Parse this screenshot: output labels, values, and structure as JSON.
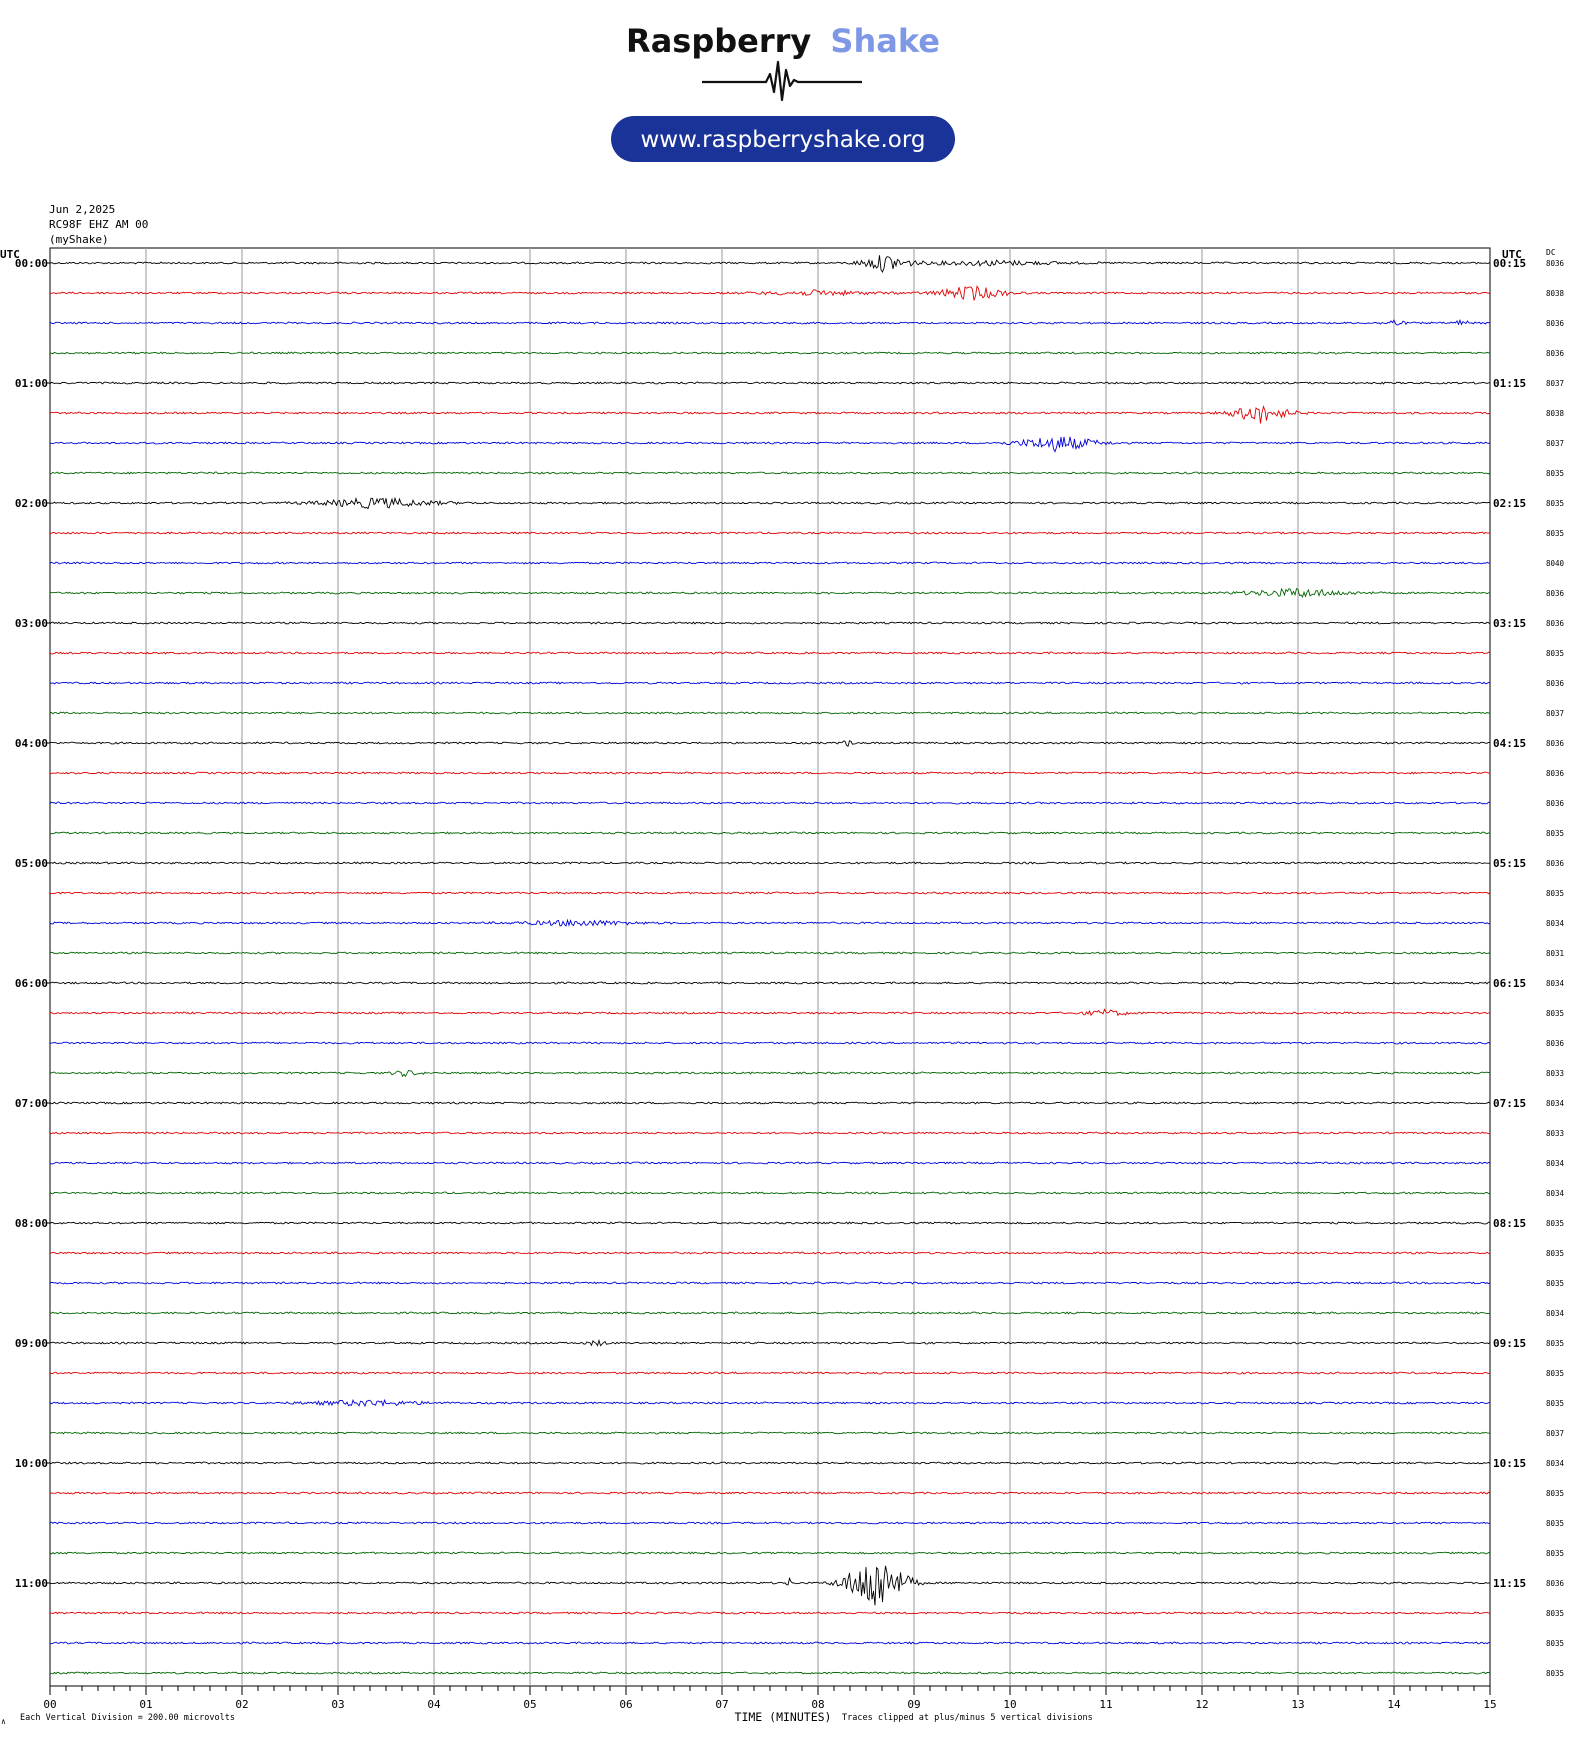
{
  "brand": {
    "name_dark": "Raspberry",
    "name_accent": "Shake",
    "url": "www.raspberryshake.org",
    "colors": {
      "dark": "#111111",
      "accent": "#7f98e6",
      "url_bg": "#1a3399",
      "url_text": "#ffffff"
    }
  },
  "header": {
    "date": "Jun 2,2025",
    "station": "RC98F EHZ AM 00",
    "network": "(myShake)"
  },
  "axes": {
    "left_label": "UTC",
    "right_label": "UTC",
    "dc_label": "DC",
    "x_title": "TIME (MINUTES)",
    "x_ticks": [
      "00",
      "01",
      "02",
      "03",
      "04",
      "05",
      "06",
      "07",
      "08",
      "09",
      "10",
      "11",
      "12",
      "13",
      "14",
      "15"
    ],
    "x_range": [
      0,
      15
    ],
    "footer_left_mark": "∧",
    "footer_left": "Each Vertical Division =  200.00 microvolts",
    "footer_right": "Traces clipped at plus/minus 5 vertical divisions"
  },
  "chart_data": {
    "type": "line",
    "title": "",
    "xlabel": "TIME (MINUTES)",
    "ylabel": "",
    "xlim": [
      0,
      15
    ],
    "trace_minutes": 15,
    "trace_colors": [
      "#000000",
      "#e00000",
      "#0000dd",
      "#006600"
    ],
    "left_hour_labels": [
      "00:00",
      "01:00",
      "02:00",
      "03:00",
      "04:00",
      "05:00",
      "06:00",
      "07:00",
      "08:00",
      "09:00",
      "10:00",
      "11:00"
    ],
    "right_hour_labels": [
      "00:15",
      "01:15",
      "02:15",
      "03:15",
      "04:15",
      "05:15",
      "06:15",
      "07:15",
      "08:15",
      "09:15",
      "10:15",
      "11:15"
    ],
    "dc_values": [
      "8036",
      "8038",
      "8036",
      "8036",
      "8037",
      "8038",
      "8037",
      "8035",
      "8035",
      "8035",
      "8040",
      "8036",
      "8036",
      "8035",
      "8036",
      "8037",
      "8036",
      "8036",
      "8036",
      "8035",
      "8036",
      "8035",
      "8034",
      "8031",
      "8034",
      "8035",
      "8036",
      "8033",
      "8034",
      "8033",
      "8034",
      "8034",
      "8035",
      "8035",
      "8035",
      "8034",
      "8035",
      "8035",
      "8035",
      "8037",
      "8034",
      "8035",
      "8035",
      "8035",
      "8036",
      "8035",
      "8035",
      "8035"
    ],
    "events": [
      {
        "trace": 0,
        "minute": 8.7,
        "width": 0.5,
        "amp": 0.9
      },
      {
        "trace": 0,
        "minute": 9.8,
        "width": 1.5,
        "amp": 0.25
      },
      {
        "trace": 1,
        "minute": 9.6,
        "width": 0.7,
        "amp": 0.75
      },
      {
        "trace": 1,
        "minute": 8.0,
        "width": 1.2,
        "amp": 0.25
      },
      {
        "trace": 2,
        "minute": 14.0,
        "width": 0.2,
        "amp": 0.35
      },
      {
        "trace": 2,
        "minute": 14.7,
        "width": 0.2,
        "amp": 0.25
      },
      {
        "trace": 5,
        "minute": 12.6,
        "width": 0.6,
        "amp": 1.0
      },
      {
        "trace": 6,
        "minute": 10.5,
        "width": 0.8,
        "amp": 0.85
      },
      {
        "trace": 8,
        "minute": 3.4,
        "width": 1.2,
        "amp": 0.55
      },
      {
        "trace": 11,
        "minute": 13.0,
        "width": 1.1,
        "amp": 0.45
      },
      {
        "trace": 16,
        "minute": 8.3,
        "width": 0.1,
        "amp": 0.4
      },
      {
        "trace": 22,
        "minute": 5.5,
        "width": 1.2,
        "amp": 0.3
      },
      {
        "trace": 25,
        "minute": 11.0,
        "width": 0.5,
        "amp": 0.3
      },
      {
        "trace": 27,
        "minute": 3.7,
        "width": 0.3,
        "amp": 0.3
      },
      {
        "trace": 36,
        "minute": 5.7,
        "width": 0.2,
        "amp": 0.3
      },
      {
        "trace": 38,
        "minute": 3.3,
        "width": 1.2,
        "amp": 0.3
      },
      {
        "trace": 44,
        "minute": 8.6,
        "width": 0.6,
        "amp": 3.2
      },
      {
        "trace": 44,
        "minute": 7.7,
        "width": 0.05,
        "amp": 0.5
      }
    ]
  }
}
